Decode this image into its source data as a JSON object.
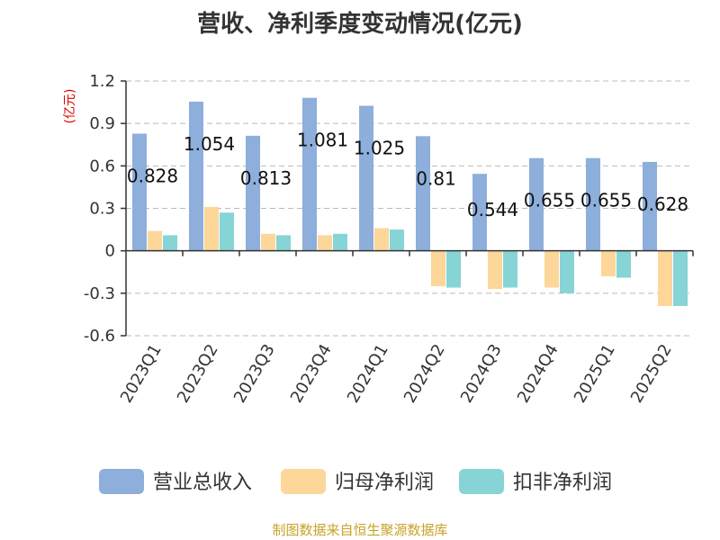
{
  "chart_data": {
    "type": "bar",
    "title": "营收、净利季度变动情况(亿元)",
    "ylabel": "(亿元)",
    "categories": [
      "2023Q1",
      "2023Q2",
      "2023Q3",
      "2023Q4",
      "2024Q1",
      "2024Q2",
      "2024Q3",
      "2024Q4",
      "2025Q1",
      "2025Q2"
    ],
    "series": [
      {
        "name": "营业总收入",
        "color": "#8eaedb",
        "values": [
          0.828,
          1.054,
          0.813,
          1.081,
          1.025,
          0.81,
          0.544,
          0.655,
          0.655,
          0.628
        ]
      },
      {
        "name": "归母净利润",
        "color": "#fdd699",
        "values": [
          0.14,
          0.31,
          0.12,
          0.11,
          0.16,
          -0.25,
          -0.27,
          -0.26,
          -0.18,
          -0.39
        ]
      },
      {
        "name": "扣非净利润",
        "color": "#86d4d6",
        "values": [
          0.11,
          0.27,
          0.11,
          0.12,
          0.15,
          -0.26,
          -0.26,
          -0.3,
          -0.19,
          -0.39
        ]
      }
    ],
    "data_labels": [
      "0.828",
      "1.054",
      "0.813",
      "1.081",
      "1.025",
      "0.81",
      "0.544",
      "0.655",
      "0.655",
      "0.628"
    ],
    "yticks": [
      "1.2",
      "0.9",
      "0.6",
      "0.3",
      "0",
      "-0.3",
      "-0.6"
    ],
    "ylim": [
      -0.6,
      1.2
    ],
    "grid": true,
    "legend_position": "bottom"
  },
  "footer": {
    "source": "制图数据来自恒生聚源数据库"
  }
}
